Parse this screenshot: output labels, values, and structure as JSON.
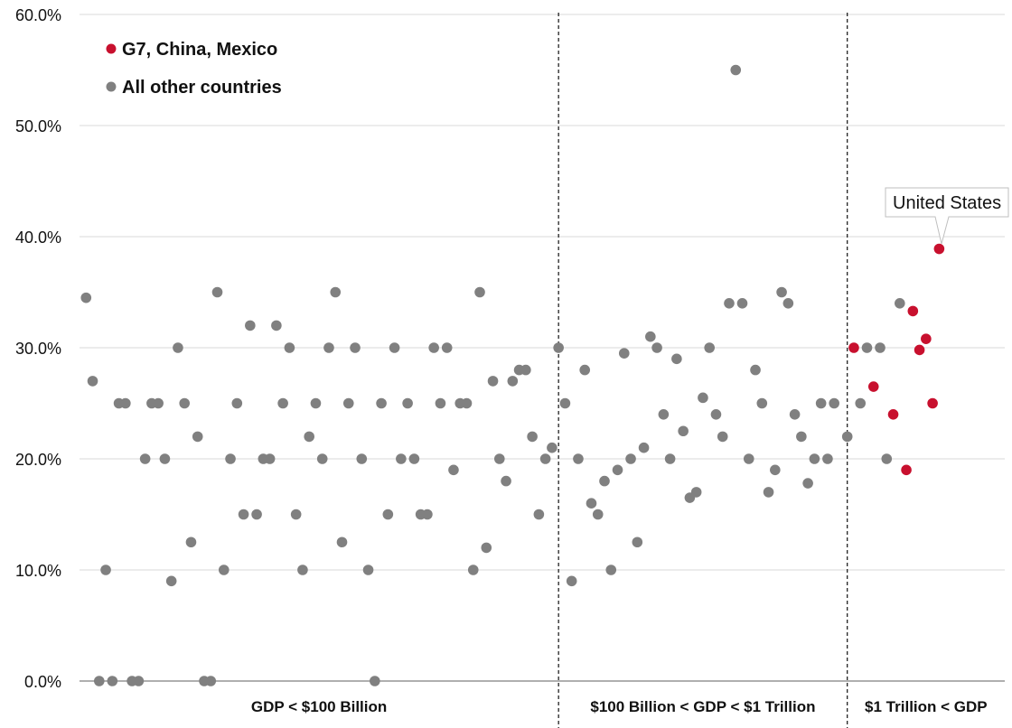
{
  "chart_data": {
    "type": "scatter",
    "y_axis": {
      "range": [
        0,
        60
      ],
      "ticks": [
        "0.0%",
        "10.0%",
        "20.0%",
        "30.0%",
        "40.0%",
        "50.0%",
        "60.0%"
      ],
      "grid": true
    },
    "segments": [
      {
        "label": "GDP < $100 Billion",
        "x_range": [
          0,
          73
        ]
      },
      {
        "label": "$100 Billion < GDP < $1 Trillion",
        "x_range": [
          73,
          117
        ]
      },
      {
        "label": "$1 Trillion < GDP",
        "x_range": [
          117,
          141
        ]
      }
    ],
    "legend": {
      "placement": "top-left",
      "entries": [
        {
          "label": "G7, China, Mexico",
          "color": "#c8102e"
        },
        {
          "label": "All other countries",
          "color": "#808080"
        }
      ]
    },
    "annotation": {
      "text": "United States",
      "series": "G7, China, Mexico",
      "index": 8
    },
    "series": [
      {
        "name": "All other countries",
        "color": "#808080",
        "points": [
          [
            1,
            34.5
          ],
          [
            2,
            27
          ],
          [
            3,
            0
          ],
          [
            4,
            10
          ],
          [
            5,
            0
          ],
          [
            6,
            25
          ],
          [
            7,
            25
          ],
          [
            8,
            0
          ],
          [
            9,
            0
          ],
          [
            10,
            20
          ],
          [
            11,
            25
          ],
          [
            12,
            25
          ],
          [
            13,
            20
          ],
          [
            14,
            9
          ],
          [
            15,
            30
          ],
          [
            16,
            25
          ],
          [
            17,
            12.5
          ],
          [
            18,
            22
          ],
          [
            19,
            0
          ],
          [
            20,
            0
          ],
          [
            21,
            35
          ],
          [
            22,
            10
          ],
          [
            23,
            20
          ],
          [
            24,
            25
          ],
          [
            25,
            15
          ],
          [
            26,
            32
          ],
          [
            27,
            15
          ],
          [
            28,
            20
          ],
          [
            29,
            20
          ],
          [
            30,
            32
          ],
          [
            31,
            25
          ],
          [
            32,
            30
          ],
          [
            33,
            15
          ],
          [
            34,
            10
          ],
          [
            35,
            22
          ],
          [
            36,
            25
          ],
          [
            37,
            20
          ],
          [
            38,
            30
          ],
          [
            39,
            35
          ],
          [
            40,
            12.5
          ],
          [
            41,
            25
          ],
          [
            42,
            30
          ],
          [
            43,
            20
          ],
          [
            44,
            10
          ],
          [
            45,
            0
          ],
          [
            46,
            25
          ],
          [
            47,
            15
          ],
          [
            48,
            30
          ],
          [
            49,
            20
          ],
          [
            50,
            25
          ],
          [
            51,
            20
          ],
          [
            52,
            15
          ],
          [
            53,
            15
          ],
          [
            54,
            30
          ],
          [
            55,
            25
          ],
          [
            56,
            30
          ],
          [
            57,
            19
          ],
          [
            58,
            25
          ],
          [
            59,
            25
          ],
          [
            60,
            10
          ],
          [
            61,
            35
          ],
          [
            62,
            12
          ],
          [
            63,
            27
          ],
          [
            64,
            20
          ],
          [
            65,
            18
          ],
          [
            66,
            27
          ],
          [
            67,
            28
          ],
          [
            68,
            28
          ],
          [
            69,
            22
          ],
          [
            70,
            15
          ],
          [
            71,
            20
          ],
          [
            72,
            21
          ],
          [
            73,
            30
          ],
          [
            74,
            25
          ],
          [
            75,
            9
          ],
          [
            76,
            20
          ],
          [
            77,
            28
          ],
          [
            78,
            16
          ],
          [
            79,
            15
          ],
          [
            80,
            18
          ],
          [
            81,
            10
          ],
          [
            82,
            19
          ],
          [
            83,
            29.5
          ],
          [
            84,
            20
          ],
          [
            85,
            12.5
          ],
          [
            86,
            21
          ],
          [
            87,
            31
          ],
          [
            88,
            30
          ],
          [
            89,
            24
          ],
          [
            90,
            20
          ],
          [
            91,
            29
          ],
          [
            92,
            22.5
          ],
          [
            93,
            16.5
          ],
          [
            94,
            17
          ],
          [
            95,
            25.5
          ],
          [
            96,
            30
          ],
          [
            97,
            24
          ],
          [
            98,
            22
          ],
          [
            99,
            34
          ],
          [
            100,
            55
          ],
          [
            101,
            34
          ],
          [
            102,
            20
          ],
          [
            103,
            28
          ],
          [
            104,
            25
          ],
          [
            105,
            17
          ],
          [
            106,
            19
          ],
          [
            107,
            35
          ],
          [
            108,
            34
          ],
          [
            109,
            24
          ],
          [
            110,
            22
          ],
          [
            111,
            17.8
          ],
          [
            112,
            20
          ],
          [
            113,
            25
          ],
          [
            114,
            20
          ],
          [
            115,
            25
          ],
          [
            117,
            22
          ],
          [
            119,
            25
          ],
          [
            120,
            30
          ],
          [
            122,
            30
          ],
          [
            123,
            20
          ],
          [
            125,
            34
          ]
        ]
      },
      {
        "name": "G7, China, Mexico",
        "color": "#c8102e",
        "points": [
          [
            118,
            30
          ],
          [
            121,
            26.5
          ],
          [
            124,
            24
          ],
          [
            126,
            19
          ],
          [
            127,
            33.3
          ],
          [
            128,
            29.8
          ],
          [
            129,
            30.8
          ],
          [
            130,
            25
          ],
          [
            131,
            38.9
          ]
        ]
      }
    ]
  }
}
